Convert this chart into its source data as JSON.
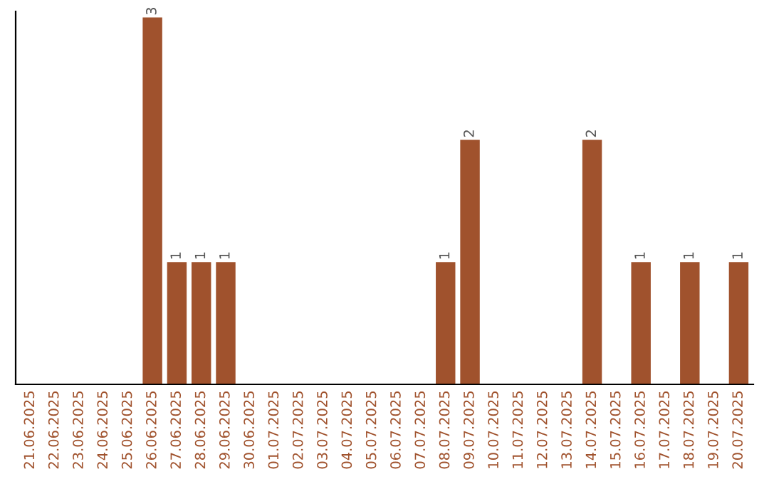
{
  "chart_data": {
    "type": "bar",
    "categories": [
      "21.06.2025",
      "22.06.2025",
      "23.06.2025",
      "24.06.2025",
      "25.06.2025",
      "26.06.2025",
      "27.06.2025",
      "28.06.2025",
      "29.06.2025",
      "30.06.2025",
      "01.07.2025",
      "02.07.2025",
      "03.07.2025",
      "04.07.2025",
      "05.07.2025",
      "06.07.2025",
      "07.07.2025",
      "08.07.2025",
      "09.07.2025",
      "10.07.2025",
      "11.07.2025",
      "12.07.2025",
      "13.07.2025",
      "14.07.2025",
      "15.07.2025",
      "16.07.2025",
      "17.07.2025",
      "18.07.2025",
      "19.07.2025",
      "20.07.2025"
    ],
    "values": [
      0,
      0,
      0,
      0,
      0,
      3,
      1,
      1,
      1,
      0,
      0,
      0,
      0,
      0,
      0,
      0,
      0,
      1,
      2,
      0,
      0,
      0,
      0,
      2,
      0,
      1,
      0,
      1,
      0,
      1
    ],
    "value_labels": [
      null,
      null,
      null,
      null,
      null,
      "3",
      "1",
      "1",
      "1",
      null,
      null,
      null,
      null,
      null,
      null,
      null,
      null,
      "1",
      "2",
      null,
      null,
      null,
      null,
      "2",
      null,
      "1",
      null,
      "1",
      null,
      "1"
    ],
    "color": "#a0522d",
    "ylim": [
      0,
      3.05
    ],
    "tick_labels": "x",
    "grid": false
  }
}
